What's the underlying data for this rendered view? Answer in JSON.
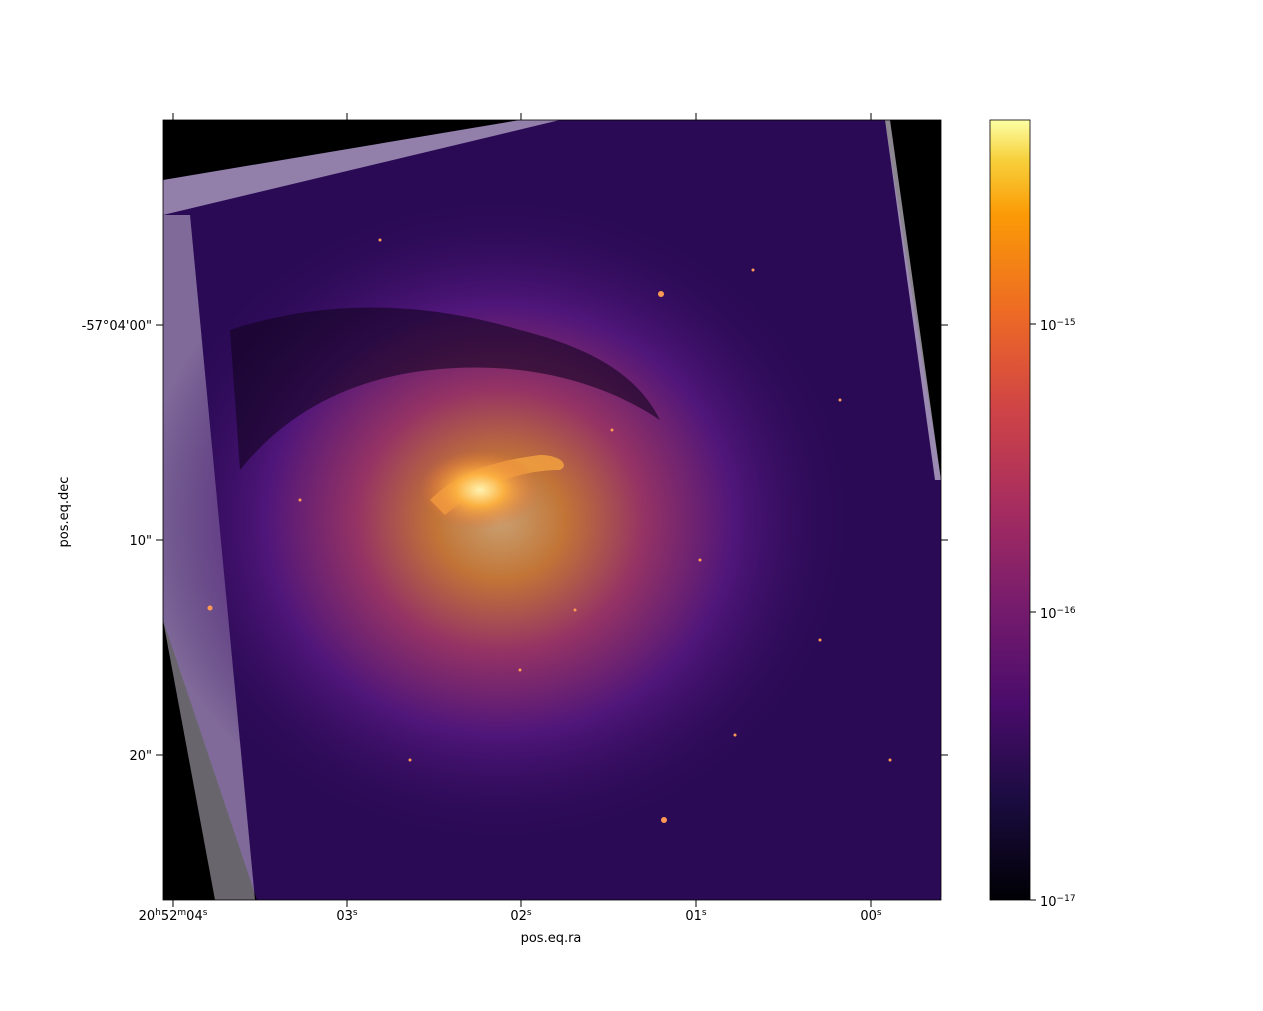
{
  "image": {
    "axes": {
      "xlabel": "pos.eq.ra",
      "ylabel": "pos.eq.dec",
      "x_ticks": [
        {
          "h": "20",
          "m": "52",
          "s": "04"
        },
        {
          "h": "",
          "m": "",
          "s": "03"
        },
        {
          "h": "",
          "m": "",
          "s": "02"
        },
        {
          "h": "",
          "m": "",
          "s": "01"
        },
        {
          "h": "",
          "m": "",
          "s": "00"
        }
      ],
      "y_ticks": [
        "20\"",
        "10\"",
        "-57°04'00\""
      ]
    },
    "colorbar": {
      "colormap": "inferno",
      "scale": "log",
      "range": [
        1e-17,
        5e-15
      ],
      "ticks": [
        {
          "base": "10",
          "exp": "−17"
        },
        {
          "base": "10",
          "exp": "−16"
        },
        {
          "base": "10",
          "exp": "−15"
        }
      ]
    },
    "colors": {
      "background": "#000000",
      "sky": "#2a0a55",
      "nucleus": "#f0a030",
      "spiral_lane": "#120420"
    }
  }
}
